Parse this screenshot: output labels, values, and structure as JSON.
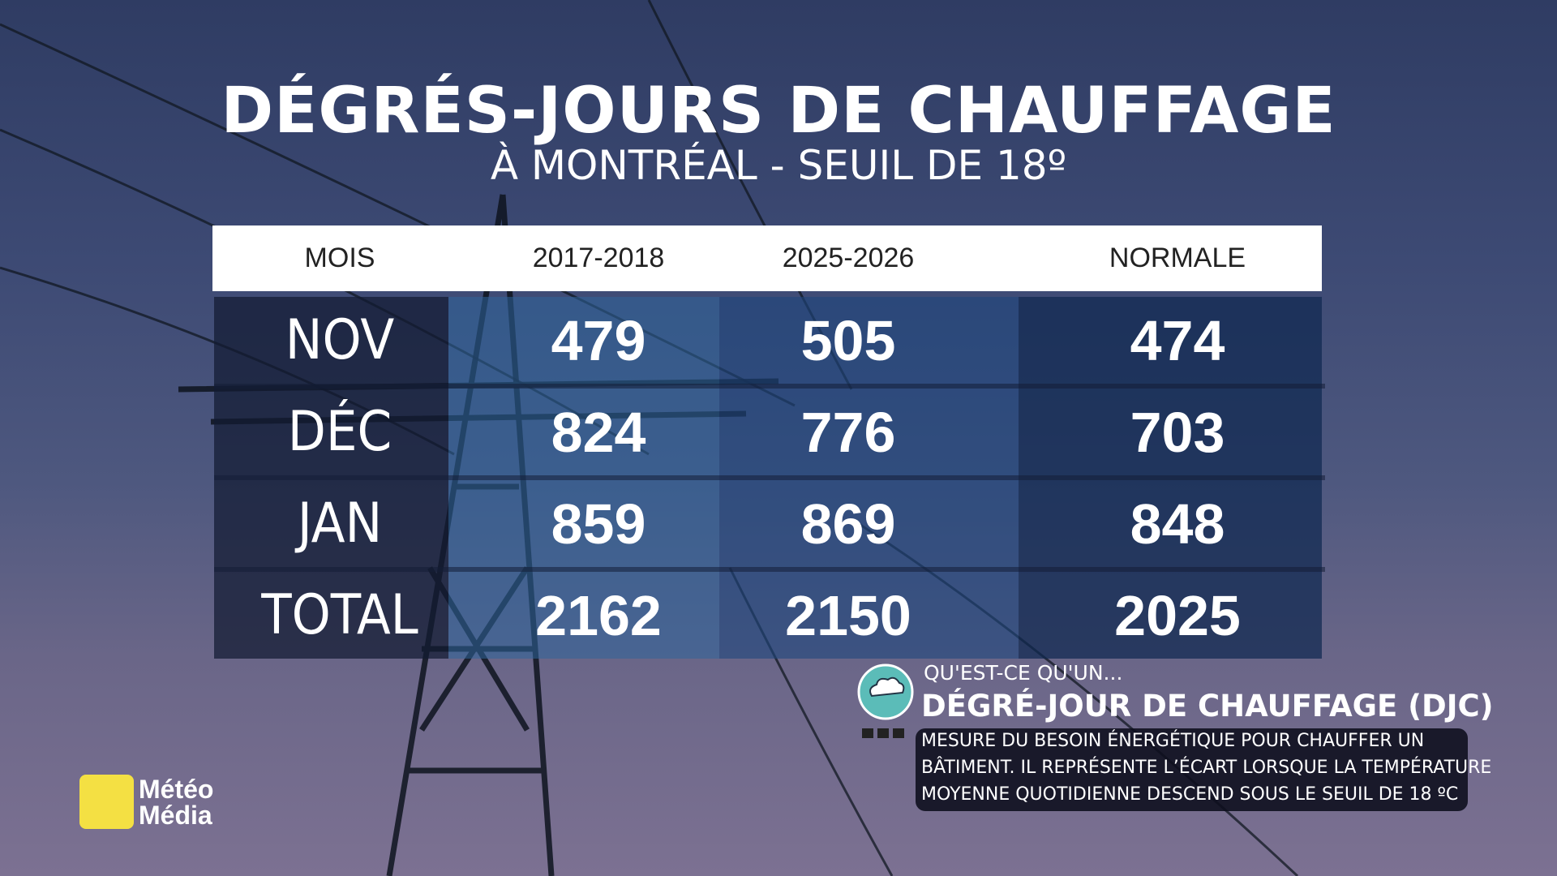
{
  "header": {
    "title": "DÉGRÉS-JOURS DE CHAUFFAGE",
    "subtitle": "À MONTRÉAL - SEUIL DE 18º"
  },
  "table": {
    "columns": [
      "MOIS",
      "2017-2018",
      "2025-2026",
      "NORMALE"
    ],
    "rows": [
      [
        "NOV",
        479,
        505,
        474
      ],
      [
        "DÉC",
        824,
        776,
        703
      ],
      [
        "JAN",
        859,
        869,
        848
      ],
      [
        "TOTAL",
        2162,
        2150,
        2025
      ]
    ]
  },
  "info": {
    "kicker": "QU'EST-CE QU'UN...",
    "title": "DÉGRÉ-JOUR DE CHAUFFAGE (DJC)",
    "lines": [
      "MESURE DU BESOIN ÉNERGÉTIQUE POUR CHAUFFER UN",
      "BÂTIMENT. IL REPRÉSENTE L’ÉCART LORSQUE LA TEMPÉRATURE",
      "MOYENNE QUOTIDIENNE DESCEND SOUS LE SEUIL DE 18 ºC"
    ]
  },
  "logo": {
    "lines": [
      "Météo",
      "Média"
    ]
  }
}
